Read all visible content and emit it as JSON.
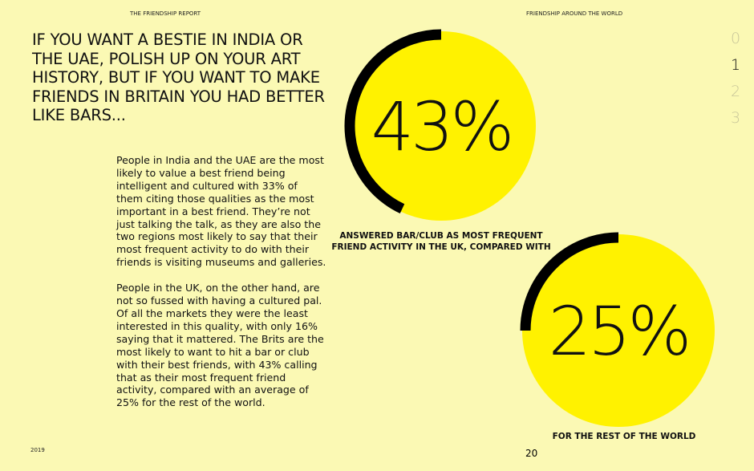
{
  "header": {
    "left": "THE FRIENDSHIP REPORT",
    "right": "FRIENDSHIP AROUND THE WORLD"
  },
  "title_lines": [
    "IF YOU WANT A BESTIE IN INDIA OR",
    "THE UAE, POLISH UP ON YOUR ART",
    "HISTORY, BUT IF YOU WANT TO MAKE",
    "FRIENDS IN BRITAIN YOU HAD BETTER",
    "LIKE BARS..."
  ],
  "paragraphs": [
    "People in India and the UAE are the most likely to value a best friend being intelligent and cultured with 33% of them citing those qualities as the most important in a best friend. They’re not just talking the talk, as they are also the two regions most likely to say that their most frequent activity to do with their friends is visiting museums and galleries.",
    "People in the UK, on the other hand, are not so fussed with having a cultured pal. Of all the markets they were the least interested in this quality, with only 16% saying that it mattered. The Brits are the most likely to want to hit a bar or club with their best friends, with 43% calling that as their most frequent friend activity, compared with an average of 25% for the rest of the world."
  ],
  "stats": [
    {
      "value": 43,
      "label": "43%",
      "caption_lines": [
        "ANSWERED BAR/CLUB AS MOST FREQUENT",
        "FRIEND ACTIVITY IN THE UK, COMPARED WITH"
      ]
    },
    {
      "value": 25,
      "label": "25%",
      "caption_lines": [
        "FOR THE REST OF THE WORLD"
      ]
    }
  ],
  "nav": [
    "0",
    "1",
    "2",
    "3"
  ],
  "footer": {
    "year": "2019",
    "page": "20"
  }
}
